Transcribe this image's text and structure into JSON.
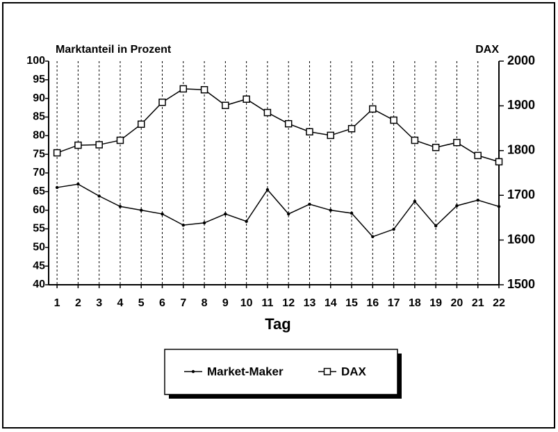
{
  "chart_data": {
    "type": "line",
    "ylabel": "Marktanteil in Prozent",
    "y2label": "DAX",
    "xlabel": "Tag",
    "x": [
      1,
      2,
      3,
      4,
      5,
      6,
      7,
      8,
      9,
      10,
      11,
      12,
      13,
      14,
      15,
      16,
      17,
      18,
      19,
      20,
      21,
      22
    ],
    "xlim": [
      0.6,
      22
    ],
    "xticks": [
      1,
      2,
      3,
      4,
      5,
      6,
      7,
      8,
      9,
      10,
      11,
      12,
      13,
      14,
      15,
      16,
      17,
      18,
      19,
      20,
      21,
      22
    ],
    "ylim": [
      40,
      100
    ],
    "yticks": [
      40,
      45,
      50,
      55,
      60,
      65,
      70,
      75,
      80,
      85,
      90,
      95,
      100
    ],
    "y2lim": [
      1500,
      2000
    ],
    "y2ticks": [
      1500,
      1600,
      1700,
      1800,
      1900,
      2000
    ],
    "grid": "x",
    "legend": "bottom",
    "series": [
      {
        "name": "Market-Maker",
        "color": "#000000",
        "marker": "dot",
        "values": [
          66.1,
          67,
          63.8,
          61,
          60,
          59,
          56,
          56.6,
          59,
          57,
          65.5,
          59,
          61.6,
          60,
          59.2,
          52.9,
          54.9,
          62.4,
          55.8,
          61.2,
          62.7,
          61
        ]
      },
      {
        "name": "DAX",
        "color": "#000000",
        "marker": "square",
        "axis": "y2",
        "values": [
          1795,
          1812,
          1813,
          1823,
          1859,
          1908,
          1938,
          1936,
          1901,
          1915,
          1885,
          1860,
          1842,
          1834,
          1849,
          1893,
          1868,
          1823,
          1807,
          1818,
          1789,
          1775
        ]
      }
    ]
  }
}
